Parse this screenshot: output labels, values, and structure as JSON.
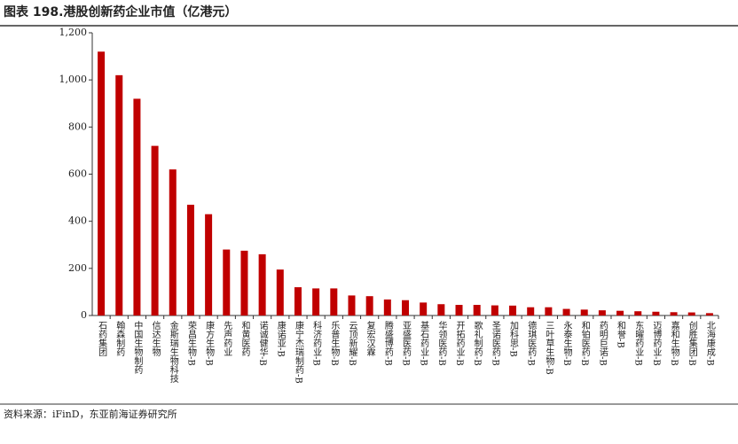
{
  "chart_data": {
    "type": "bar",
    "title": "图表 198.港股创新药企业市值（亿港元）",
    "source": "资料来源：iFinD，东亚前海证券研究所",
    "categories": [
      "石药集团",
      "翰森制药",
      "中国生物制药",
      "信达生物",
      "金斯瑞生物科技",
      "荣昌生物-B",
      "康方生物-B",
      "先声药业",
      "和黄医药",
      "诺诚健华-B",
      "康诺亚-B",
      "康宁杰瑞制药-B",
      "科济药业-B",
      "乐普生物-B",
      "云顶新耀-B",
      "复宏汉霖",
      "腾盛博药-B",
      "亚盛医药-B",
      "基石药业-B",
      "华领医药-B",
      "开拓药业-B",
      "歌礼制药-B",
      "圣诺医药-B",
      "加科思-B",
      "德琪医药-B",
      "三叶草生物-B",
      "永泰生物-B",
      "和铂医药-B",
      "药明巨诺-B",
      "和誉-B",
      "东曜药业-B",
      "迈博药业-B",
      "嘉和生物-B",
      "创胜集团-B",
      "北海康成-B"
    ],
    "values": [
      1120,
      1020,
      920,
      720,
      620,
      470,
      430,
      280,
      275,
      260,
      195,
      120,
      115,
      115,
      85,
      82,
      68,
      65,
      55,
      48,
      45,
      45,
      43,
      42,
      35,
      35,
      28,
      25,
      22,
      20,
      18,
      16,
      14,
      13,
      10
    ],
    "color": "#c00000",
    "ylim": [
      0,
      1200
    ],
    "yticks": [
      0,
      200,
      400,
      600,
      800,
      {
        "value": 1000,
        "label": "1,000"
      },
      {
        "value": 1200,
        "label": "1,200"
      }
    ],
    "grid": false
  }
}
